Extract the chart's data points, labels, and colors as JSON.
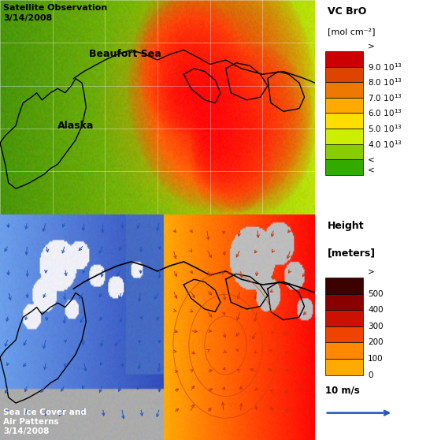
{
  "title_top": "Satellite Observation\n3/14/2008",
  "title_bottom": "Sea Ice Cover and\nAir Patterns\n3/14/2008",
  "cb1_title": "VC BrO",
  "cb1_units": "[mol cm⁻²]",
  "cb1_labels": [
    ">",
    "9.0 10$^{13}$",
    "8.0 10$^{13}$",
    "7.0 10$^{13}$",
    "6.0 10$^{13}$",
    "5.0 10$^{13}$",
    "4.0 10$^{13}$",
    "<"
  ],
  "cb1_colors": [
    "#cc0000",
    "#dd4400",
    "#ee7700",
    "#ffaa00",
    "#ffdd00",
    "#ccee00",
    "#88cc00",
    "#33aa00"
  ],
  "cb2_title": "Height",
  "cb2_title2": "[meters]",
  "cb2_labels": [
    ">",
    "500",
    "400",
    "300",
    "200",
    "100",
    "0"
  ],
  "cb2_colors": [
    "#3d0000",
    "#880000",
    "#cc1100",
    "#ee4400",
    "#ff8800",
    "#ffaa00"
  ],
  "wind_label": "10 m/s",
  "label_beaufort": "Beaufort Sea",
  "label_alaska": "Alaska"
}
